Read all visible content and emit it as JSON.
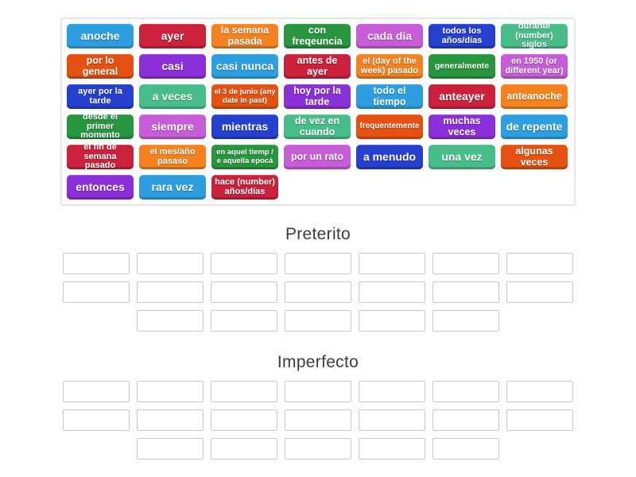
{
  "palette": {
    "lightblue": "#2D9FE0",
    "crimson": "#CB213B",
    "orange": "#F5821F",
    "forest": "#28953F",
    "orchid": "#C75CD8",
    "royal": "#2540CF",
    "seagreen": "#47BD89",
    "vermilion": "#E55110",
    "blueviolet": "#8B2FD9"
  },
  "tile_bank": {
    "tiles": [
      {
        "label": "anoche",
        "color": "lightblue"
      },
      {
        "label": "ayer",
        "color": "crimson"
      },
      {
        "label": "la semana pasada",
        "color": "orange"
      },
      {
        "label": "con freqeuncia",
        "color": "forest"
      },
      {
        "label": "cada dia",
        "color": "orchid"
      },
      {
        "label": "todos los años/dias",
        "color": "royal"
      },
      {
        "label": "durante (number) siglos",
        "color": "seagreen"
      },
      {
        "label": "por lo general",
        "color": "vermilion"
      },
      {
        "label": "casi",
        "color": "blueviolet"
      },
      {
        "label": "casi nunca",
        "color": "lightblue"
      },
      {
        "label": "antes de ayer",
        "color": "crimson"
      },
      {
        "label": "el (day of the week) pasado",
        "color": "orange"
      },
      {
        "label": "generalmente",
        "color": "forest"
      },
      {
        "label": "en 1950 (or different year)",
        "color": "orchid"
      },
      {
        "label": "ayer por la tarde",
        "color": "royal"
      },
      {
        "label": "a veces",
        "color": "seagreen"
      },
      {
        "label": "el 3 de junio (any date in past)",
        "color": "vermilion"
      },
      {
        "label": "hoy por la tarde",
        "color": "blueviolet"
      },
      {
        "label": "todo el tiempo",
        "color": "lightblue"
      },
      {
        "label": "anteayer",
        "color": "crimson"
      },
      {
        "label": "anteanoche",
        "color": "orange"
      },
      {
        "label": "desde el primer momento",
        "color": "forest"
      },
      {
        "label": "siempre",
        "color": "orchid"
      },
      {
        "label": "mientras",
        "color": "royal"
      },
      {
        "label": "de vez en cuando",
        "color": "seagreen"
      },
      {
        "label": "frequentemente",
        "color": "vermilion"
      },
      {
        "label": "muchas veces",
        "color": "blueviolet"
      },
      {
        "label": "de repente",
        "color": "lightblue"
      },
      {
        "label": "el fin de semana pasado",
        "color": "crimson"
      },
      {
        "label": "el mes/año pasaso",
        "color": "orange"
      },
      {
        "label": "en aquel tiemp / e aquella epocá",
        "color": "forest"
      },
      {
        "label": "por un rato",
        "color": "orchid"
      },
      {
        "label": "a menudo",
        "color": "royal"
      },
      {
        "label": "una vez",
        "color": "seagreen"
      },
      {
        "label": "algunas veces",
        "color": "vermilion"
      },
      {
        "label": "entonces",
        "color": "blueviolet"
      },
      {
        "label": "rara vez",
        "color": "lightblue"
      },
      {
        "label": "hace (number) años/días",
        "color": "crimson"
      }
    ]
  },
  "groups": [
    {
      "title": "Preterito",
      "slot_rows": [
        7,
        7,
        5
      ]
    },
    {
      "title": "Imperfecto",
      "slot_rows": [
        7,
        7,
        5
      ]
    }
  ]
}
